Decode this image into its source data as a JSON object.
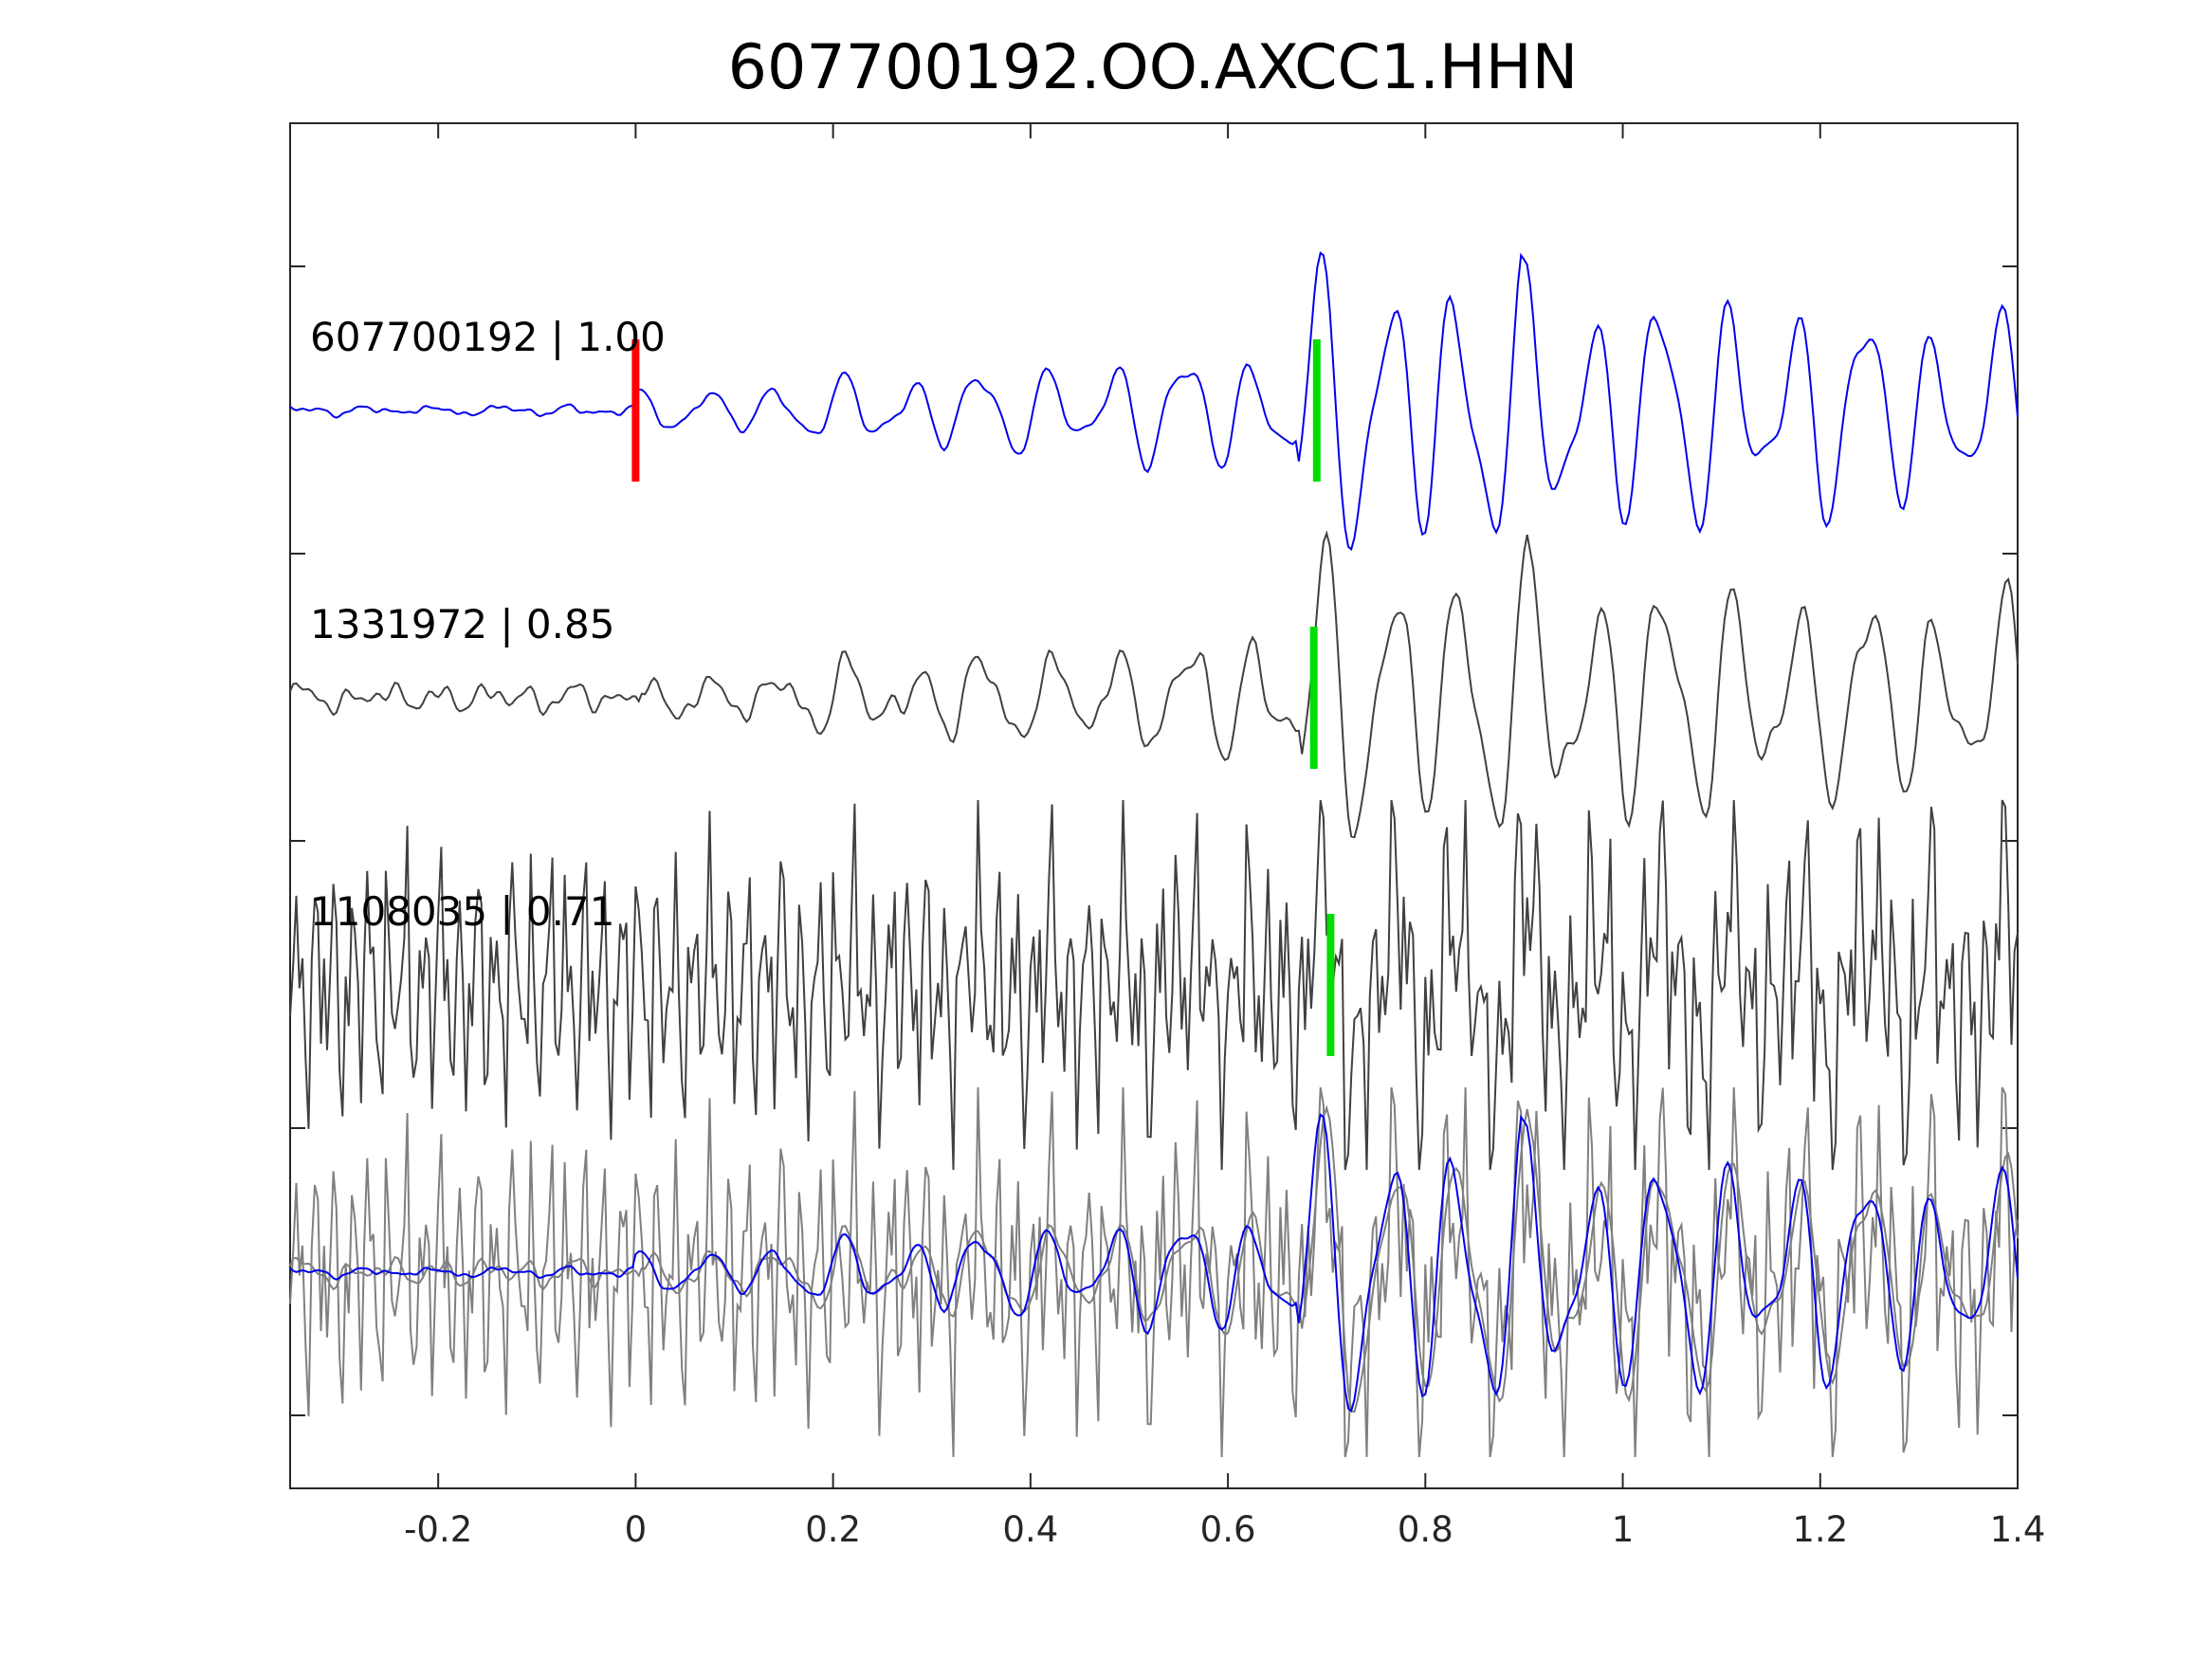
{
  "chart_data": {
    "type": "line",
    "title": "607700192.OO.AXCC1.HHN",
    "xlabel": "",
    "ylabel": "",
    "xlim": [
      -0.35,
      1.4
    ],
    "xticks": [
      -0.2,
      0,
      0.2,
      0.4,
      0.6,
      0.8,
      1,
      1.2,
      1.4
    ],
    "xtick_labels": [
      "-0.2",
      "0",
      "0.2",
      "0.4",
      "0.6",
      "0.8",
      "1",
      "1.2",
      "1.4"
    ],
    "grid": false,
    "legend": "none",
    "panels": [
      {
        "label": "607700192 | 1.00",
        "color": "#0000ee",
        "amp": 1.0,
        "noise": 0.02,
        "noise_freq": 28,
        "lag": 0,
        "pick_red": 0,
        "pick_green": 0.69
      },
      {
        "label": "1331972 | 0.85",
        "color": "#404040",
        "amp": 1.0,
        "noise": 0.09,
        "noise_freq": 22,
        "lag": 0.004,
        "pick_green": 0.687
      },
      {
        "label": "1108035 | 0.71",
        "color": "#404040",
        "amp": 0.8,
        "noise": 0.9,
        "noise_freq": 55,
        "lag": 0.002,
        "pick_green": 0.704
      }
    ],
    "overlay": {
      "series_colors": [
        "#0000ee",
        "#808080",
        "#808080"
      ]
    },
    "signal_model": {
      "onset": 0,
      "main_arrival": 0.69,
      "pre_event_amplitude": 0.03,
      "coda_amplitude": 0.45,
      "main_amplitude": 1.0,
      "dominant_frequency": 14.5
    }
  }
}
